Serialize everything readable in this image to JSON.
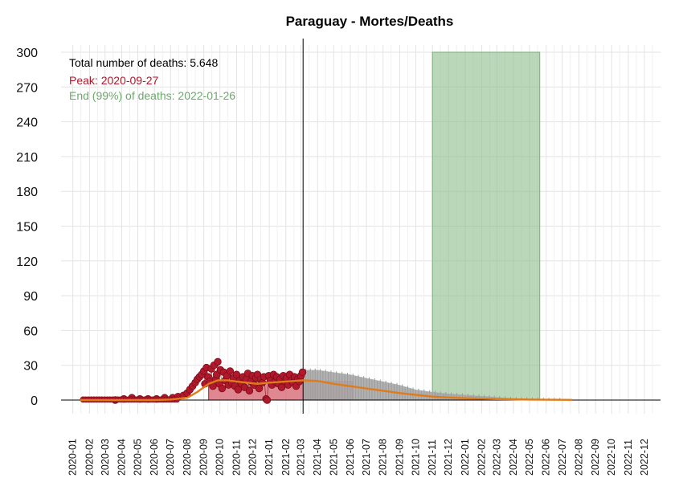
{
  "chart_data": {
    "type": "line",
    "title": "Paraguay - Mortes/Deaths",
    "xlabel": "",
    "ylabel": "",
    "ylim": [
      0,
      300
    ],
    "y_ticks": [
      0,
      30,
      60,
      90,
      120,
      150,
      180,
      210,
      240,
      270,
      300
    ],
    "x_ticks": [
      "2020-01",
      "2020-02",
      "2020-03",
      "2020-04",
      "2020-05",
      "2020-06",
      "2020-07",
      "2020-08",
      "2020-09",
      "2020-10",
      "2020-11",
      "2020-12",
      "2021-01",
      "2021-02",
      "2021-03",
      "2021-04",
      "2021-05",
      "2021-06",
      "2021-07",
      "2021-08",
      "2021-09",
      "2021-10",
      "2021-11",
      "2021-12",
      "2022-01",
      "2022-02",
      "2022-03",
      "2022-04",
      "2022-05",
      "2022-06",
      "2022-07",
      "2022-08",
      "2022-09",
      "2022-10",
      "2022-11",
      "2022-12"
    ],
    "grid": true,
    "annotations": {
      "total": "Total number of deaths: 5.648",
      "peak": "Peak: 2020-09-27",
      "end": "End (99%) of deaths: 2022-01-26"
    },
    "colors": {
      "observed": "#b2182b",
      "observed_bar": "#d9737e",
      "fitted": "#e07b1a",
      "prediction_band": "#a9a9a9",
      "end_band": "#8fbf8f"
    },
    "current_date": "2021-03-05",
    "end_band": {
      "start": "2021-11-01",
      "end": "2022-05-20"
    },
    "observed_bar": {
      "start": "2020-09-10",
      "end": "2021-06-05"
    },
    "series": [
      {
        "type": "scatter",
        "dates": [
          "2020-03-20",
          "2020-04-05",
          "2020-04-20",
          "2020-05-05",
          "2020-05-20",
          "2020-06-05",
          "2020-06-20",
          "2020-07-05",
          "2020-07-15",
          "2020-07-25",
          "2020-08-01",
          "2020-08-06",
          "2020-08-11",
          "2020-08-16",
          "2020-08-20",
          "2020-08-24",
          "2020-08-28",
          "2020-09-01",
          "2020-09-03",
          "2020-09-06",
          "2020-09-09",
          "2020-09-12",
          "2020-09-15",
          "2020-09-18",
          "2020-09-20",
          "2020-09-23",
          "2020-09-25",
          "2020-09-27",
          "2020-09-30",
          "2020-10-02",
          "2020-10-05",
          "2020-10-08",
          "2020-10-11",
          "2020-10-14",
          "2020-10-17",
          "2020-10-20",
          "2020-10-23",
          "2020-10-26",
          "2020-10-29",
          "2020-11-01",
          "2020-11-04",
          "2020-11-07",
          "2020-11-10",
          "2020-11-13",
          "2020-11-16",
          "2020-11-19",
          "2020-11-22",
          "2020-11-25",
          "2020-11-28",
          "2020-12-01",
          "2020-12-04",
          "2020-12-07",
          "2020-12-10",
          "2020-12-13",
          "2020-12-16",
          "2020-12-19",
          "2020-12-22",
          "2020-12-26",
          "2020-12-28",
          "2020-12-31",
          "2021-01-03",
          "2021-01-06",
          "2021-01-09",
          "2021-01-12",
          "2021-01-15",
          "2021-01-18",
          "2021-01-21",
          "2021-01-24",
          "2021-01-27",
          "2021-01-30",
          "2021-02-02",
          "2021-02-05",
          "2021-02-08",
          "2021-02-11",
          "2021-02-14",
          "2021-02-17",
          "2021-02-20",
          "2021-02-23",
          "2021-02-26",
          "2021-03-01",
          "2021-03-04"
        ],
        "values": [
          0,
          1,
          2,
          1,
          1,
          1,
          2,
          2,
          3,
          4,
          6,
          9,
          12,
          15,
          18,
          20,
          22,
          25,
          14,
          28,
          20,
          16,
          27,
          12,
          30,
          18,
          22,
          33,
          14,
          26,
          10,
          24,
          17,
          21,
          13,
          25,
          15,
          19,
          12,
          22,
          9,
          17,
          14,
          20,
          11,
          18,
          23,
          8,
          16,
          21,
          13,
          19,
          22,
          10,
          18,
          15,
          20,
          1,
          0,
          21,
          17,
          13,
          22,
          16,
          20,
          14,
          18,
          11,
          21,
          16,
          19,
          13,
          22,
          17,
          15,
          20,
          12,
          18,
          16,
          21,
          24
        ]
      },
      {
        "type": "line",
        "name": "fitted",
        "dates": [
          "2020-01-15",
          "2020-06-01",
          "2020-07-01",
          "2020-08-01",
          "2020-08-20",
          "2020-09-10",
          "2020-09-27",
          "2020-10-15",
          "2020-11-01",
          "2020-11-20",
          "2020-12-10",
          "2021-01-01",
          "2021-02-01",
          "2021-03-05",
          "2021-04-01",
          "2021-05-01",
          "2021-06-01",
          "2021-07-01",
          "2021-08-01",
          "2021-09-01",
          "2021-10-01",
          "2021-11-01",
          "2021-12-01",
          "2022-01-01",
          "2022-02-01",
          "2022-03-01",
          "2022-04-01",
          "2022-05-01",
          "2022-06-01",
          "2022-07-01",
          "2022-07-20"
        ],
        "values": [
          0,
          0,
          0.5,
          2,
          7,
          14,
          17,
          17,
          16,
          15,
          14,
          15,
          16,
          17,
          16.5,
          14,
          12,
          10,
          8,
          6,
          4.5,
          3,
          2.2,
          1.6,
          1.2,
          0.8,
          0.6,
          0.4,
          0.3,
          0.2,
          0.1
        ]
      },
      {
        "type": "area",
        "name": "prediction_upper",
        "dates": [
          "2021-03-05",
          "2021-04-01",
          "2021-05-01",
          "2021-06-01",
          "2021-07-01",
          "2021-08-01",
          "2021-09-01",
          "2021-10-01",
          "2021-11-01",
          "2021-12-01",
          "2022-01-01",
          "2022-02-01",
          "2022-03-01",
          "2022-04-01",
          "2022-05-01",
          "2022-06-01",
          "2022-07-01"
        ],
        "values": [
          26,
          26,
          24,
          22,
          19,
          16,
          13,
          9,
          7,
          5.5,
          4.5,
          3.5,
          2.5,
          1.5,
          1.2,
          0.8,
          0.5
        ]
      }
    ]
  }
}
